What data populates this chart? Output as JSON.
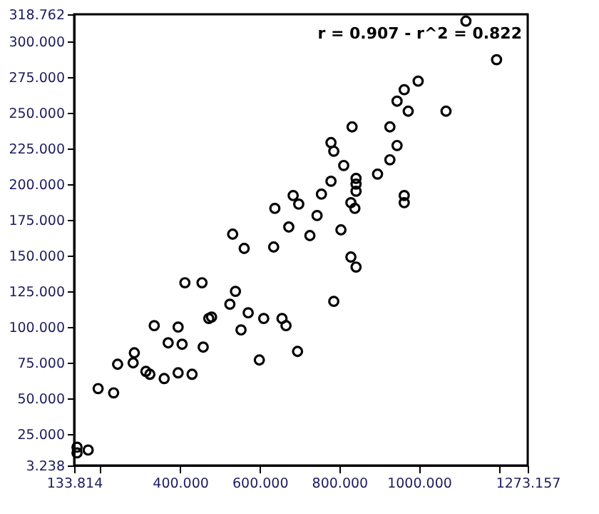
{
  "chart_data": {
    "type": "scatter",
    "marker": "circle",
    "grid": false,
    "annotations": [
      "r = 0.907 - r^2 = 0.822"
    ],
    "xlim": [
      133.814,
      1273.157
    ],
    "xticks": [
      {
        "value": 133.814,
        "label": "133.814"
      },
      {
        "value": 200,
        "label": null
      },
      {
        "value": 400,
        "label": "400.000"
      },
      {
        "value": 600,
        "label": "600.000"
      },
      {
        "value": 800,
        "label": "800.000"
      },
      {
        "value": 1000,
        "label": "1000.000"
      },
      {
        "value": 1200,
        "label": null
      },
      {
        "value": 1273.157,
        "label": "1273.157"
      }
    ],
    "ylim": [
      3.238,
      318.762
    ],
    "yticks": [
      {
        "value": 3.238,
        "label": "3.238"
      },
      {
        "value": 25,
        "label": "25.000"
      },
      {
        "value": 50,
        "label": "50.000"
      },
      {
        "value": 75,
        "label": "75.000"
      },
      {
        "value": 100,
        "label": "100.000"
      },
      {
        "value": 125,
        "label": "125.000"
      },
      {
        "value": 150,
        "label": "150.000"
      },
      {
        "value": 175,
        "label": "175.000"
      },
      {
        "value": 200,
        "label": "200.000"
      },
      {
        "value": 225,
        "label": "225.000"
      },
      {
        "value": 250,
        "label": "250.000"
      },
      {
        "value": 275,
        "label": "275.000"
      },
      {
        "value": 300,
        "label": "300.000"
      },
      {
        "value": 318.762,
        "label": "318.762"
      }
    ],
    "series": [
      {
        "color": "#000000",
        "x": [
          141,
          141,
          169,
          194,
          233,
          243,
          282,
          285,
          335,
          314,
          324,
          360,
          395,
          430,
          370,
          405,
          395,
          412,
          455,
          458,
          472,
          479,
          525,
          539,
          553,
          571,
          599,
          610,
          656,
          666,
          695,
          561,
          635,
          532,
          638,
          673,
          684,
          698,
          726,
          1118,
          1195,
          998,
          963,
          945,
          973,
          1068,
          832,
          927,
          779,
          786,
          945,
          927,
          811,
          896,
          779,
          842,
          842,
          842,
          755,
          829,
          839,
          963,
          963,
          744,
          804,
          829,
          842,
          786
        ],
        "values": [
          16,
          12,
          14,
          57,
          54,
          74,
          75,
          82,
          101,
          69,
          67,
          64,
          68,
          67,
          89,
          88,
          100,
          131,
          131,
          86,
          106,
          107,
          116,
          125,
          98,
          110,
          77,
          106,
          106,
          101,
          83,
          155,
          156,
          165,
          183,
          170,
          192,
          186,
          164,
          314,
          287,
          272,
          266,
          258,
          251,
          251,
          240,
          240,
          229,
          223,
          227,
          217,
          213,
          207,
          202,
          204,
          200,
          195,
          193,
          187,
          183,
          192,
          187,
          178,
          168,
          149,
          142,
          118
        ]
      }
    ]
  }
}
